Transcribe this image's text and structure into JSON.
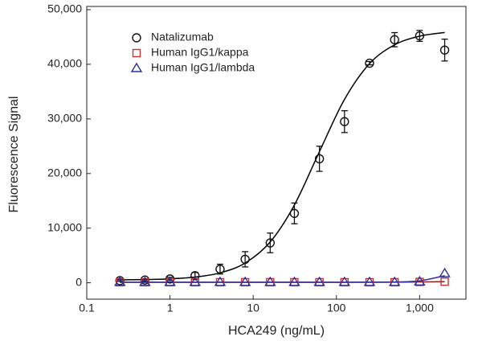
{
  "chart_data": {
    "type": "scatter",
    "x_label": "HCA249 (ng/mL)",
    "y_label": "Fluorescence Signal",
    "x_log": true,
    "xlim": [
      0.1,
      3600
    ],
    "xticks": [
      0.1,
      1,
      10,
      100,
      {
        "value": 1000,
        "label": "1,000"
      }
    ],
    "ylim": [
      -3000,
      50000
    ],
    "yticks": [
      0,
      {
        "value": 10000,
        "label": "10,000"
      },
      {
        "value": 20000,
        "label": "20,000"
      },
      {
        "value": 30000,
        "label": "30,000"
      },
      {
        "value": 40000,
        "label": "40,000"
      },
      {
        "value": 50000,
        "label": "50,000"
      }
    ],
    "legend": "upper left",
    "x": [
      0.25,
      0.5,
      1,
      2,
      4,
      8,
      16,
      31.25,
      62.5,
      125,
      250,
      500,
      1000,
      2000
    ],
    "series": [
      {
        "name": "Natalizumab",
        "color": "#111111",
        "marker": "circle",
        "values": [
          400,
          500,
          700,
          1300,
          2500,
          4300,
          7300,
          12700,
          22700,
          29500,
          40200,
          44500,
          45200,
          42600
        ],
        "errors": [
          150,
          200,
          300,
          600,
          900,
          1400,
          1800,
          1900,
          2300,
          2000,
          300,
          1300,
          1000,
          2000
        ],
        "fit": [
          537,
          590,
          723,
          1045,
          1814,
          3612,
          7470,
          14230,
          24010,
          33570,
          40120,
          43560,
          45150,
          45820
        ],
        "line_color": "#000000"
      },
      {
        "name": "Human IgG1/kappa",
        "color": "#c8322f",
        "marker": "square",
        "values": [
          100,
          100,
          100,
          100,
          100,
          100,
          100,
          100,
          100,
          100,
          100,
          100,
          150,
          200
        ],
        "fit": [
          100,
          100,
          100,
          100,
          100,
          100,
          100,
          100,
          100,
          100,
          100,
          110,
          140,
          200
        ],
        "line_color": "#8b1a1a"
      },
      {
        "name": "Human IgG1/lambda",
        "color": "#2d2d9c",
        "marker": "triangle",
        "values": [
          100,
          100,
          100,
          100,
          100,
          100,
          100,
          100,
          100,
          100,
          100,
          100,
          200,
          1700
        ],
        "fit": [
          100,
          100,
          100,
          100,
          100,
          100,
          100,
          100,
          100,
          100,
          110,
          150,
          350,
          1300
        ],
        "line_color": "#2d2d9c"
      }
    ]
  }
}
